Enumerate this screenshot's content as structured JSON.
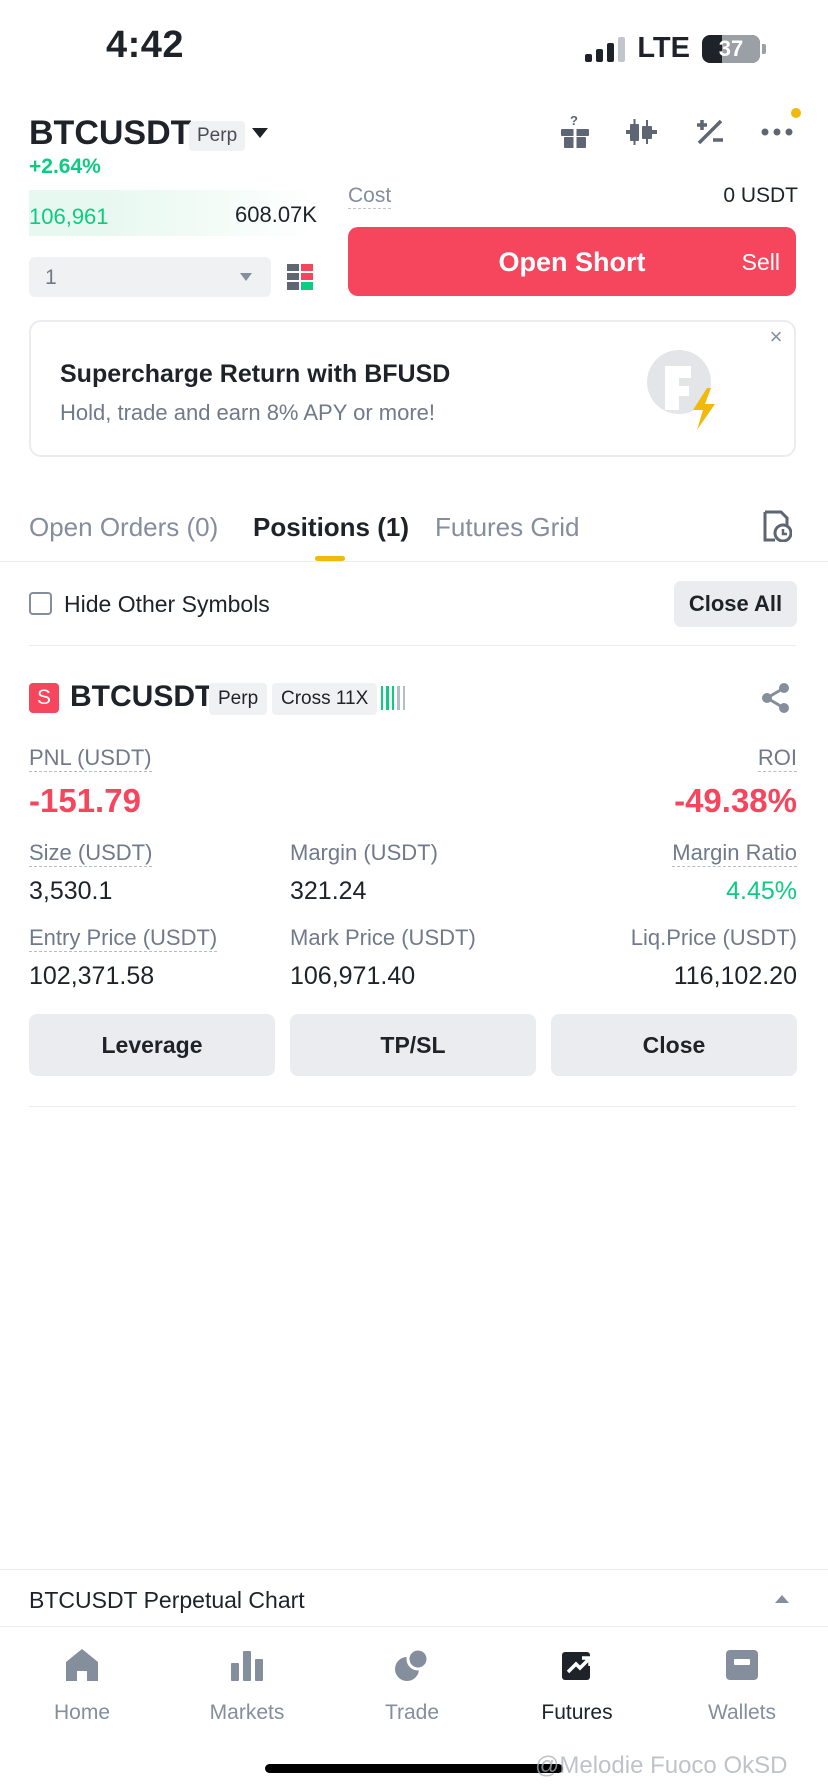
{
  "status_bar": {
    "time": "4:42",
    "network": "LTE",
    "battery": "37"
  },
  "header": {
    "symbol": "BTCUSDT",
    "tag": "Perp",
    "change": "+2.64%"
  },
  "order_panel": {
    "book_price": "106,961",
    "book_amount": "608.07K",
    "cost_label": "Cost",
    "cost_value": "0 USDT",
    "quantity": "1",
    "open_short_label": "Open Short",
    "sell_label": "Sell"
  },
  "banner": {
    "title": "Supercharge Return with BFUSD",
    "subtitle": "Hold, trade and earn 8% APY or more!",
    "close": "×"
  },
  "tabs": [
    {
      "label": "Open Orders (0)"
    },
    {
      "label": "Positions (1)"
    },
    {
      "label": "Futures Grid"
    }
  ],
  "filters": {
    "hide_label": "Hide Other Symbols",
    "close_all": "Close All"
  },
  "position": {
    "side_badge": "S",
    "symbol": "BTCUSDT",
    "tag_type": "Perp",
    "tag_margin": "Cross 11X",
    "pnl_label": "PNL (USDT)",
    "pnl_value": "-151.79",
    "roi_label": "ROI",
    "roi_value": "-49.38%",
    "size_label": "Size (USDT)",
    "size_value": "3,530.1",
    "margin_label": "Margin (USDT)",
    "margin_value": "321.24",
    "margin_ratio_label": "Margin Ratio",
    "margin_ratio_value": "4.45%",
    "entry_label": "Entry Price (USDT)",
    "entry_value": "102,371.58",
    "mark_label": "Mark Price (USDT)",
    "mark_value": "106,971.40",
    "liq_label": "Liq.Price (USDT)",
    "liq_value": "116,102.20",
    "actions": [
      "Leverage",
      "TP/SL",
      "Close"
    ]
  },
  "chart_bar": {
    "label": "BTCUSDT Perpetual  Chart"
  },
  "bottom_nav": [
    {
      "label": "Home",
      "icon": "home-icon"
    },
    {
      "label": "Markets",
      "icon": "markets-icon"
    },
    {
      "label": "Trade",
      "icon": "trade-icon"
    },
    {
      "label": "Futures",
      "icon": "futures-icon"
    },
    {
      "label": "Wallets",
      "icon": "wallets-icon"
    }
  ],
  "watermark": "@Melodie Fuoco OkSD",
  "colors": {
    "up": "#0ecb81",
    "down": "#f6465d",
    "accent": "#f0b90b"
  }
}
